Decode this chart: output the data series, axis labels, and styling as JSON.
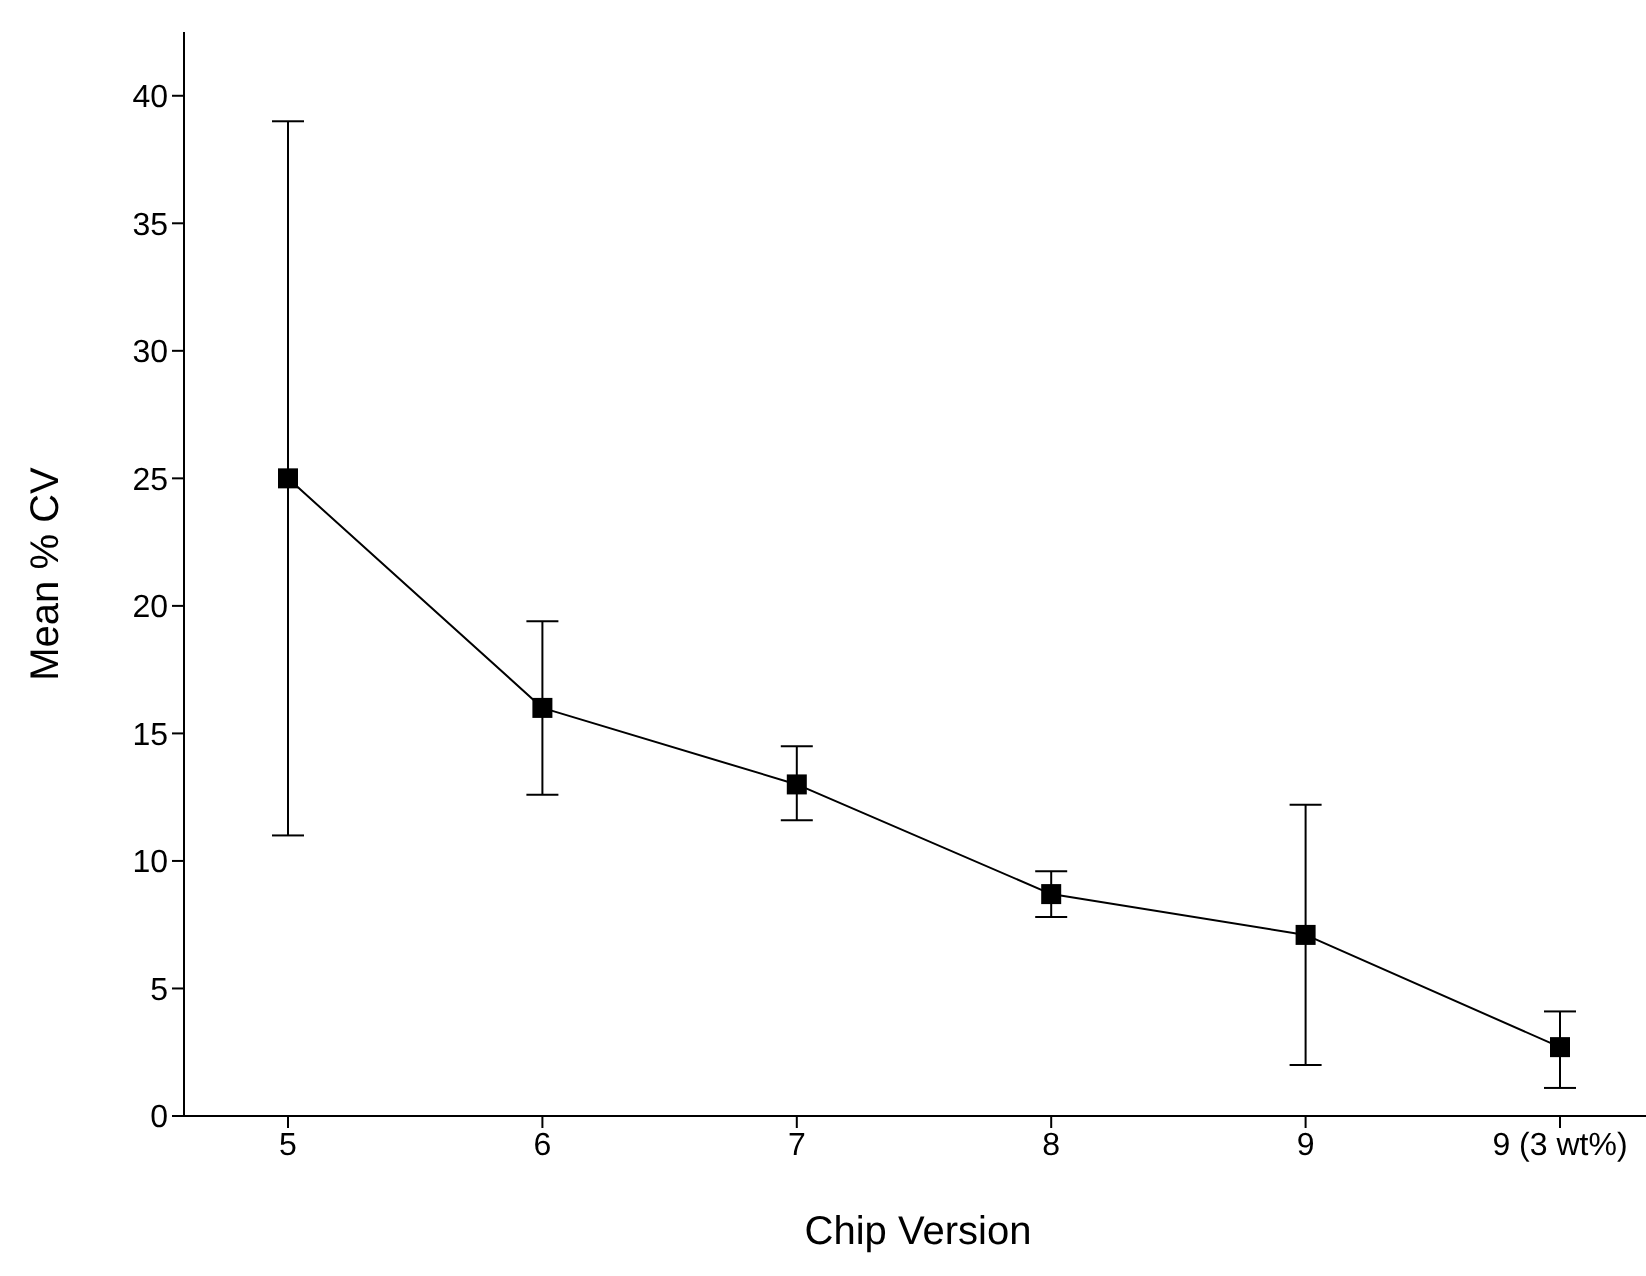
{
  "chart_data": {
    "type": "line",
    "xlabel": "Chip Version",
    "ylabel": "Mean % CV",
    "categories": [
      "5",
      "6",
      "7",
      "8",
      "9",
      "9 (3 wt%)"
    ],
    "series": [
      {
        "color": "#000000",
        "values": [
          25,
          16,
          13,
          8.7,
          7.1,
          2.7
        ],
        "errors": [
          [
            11,
            39
          ],
          [
            12.6,
            19.4
          ],
          [
            11.6,
            14.5
          ],
          [
            7.8,
            9.6
          ],
          [
            2,
            12.2
          ],
          [
            1.1,
            4.1
          ]
        ]
      }
    ],
    "ylim": [
      0,
      42.5
    ],
    "yticks": [
      0,
      5,
      10,
      15,
      20,
      25,
      30,
      35,
      40
    ],
    "grid": false,
    "legend": false,
    "marker": "square",
    "line_style": "solid"
  }
}
